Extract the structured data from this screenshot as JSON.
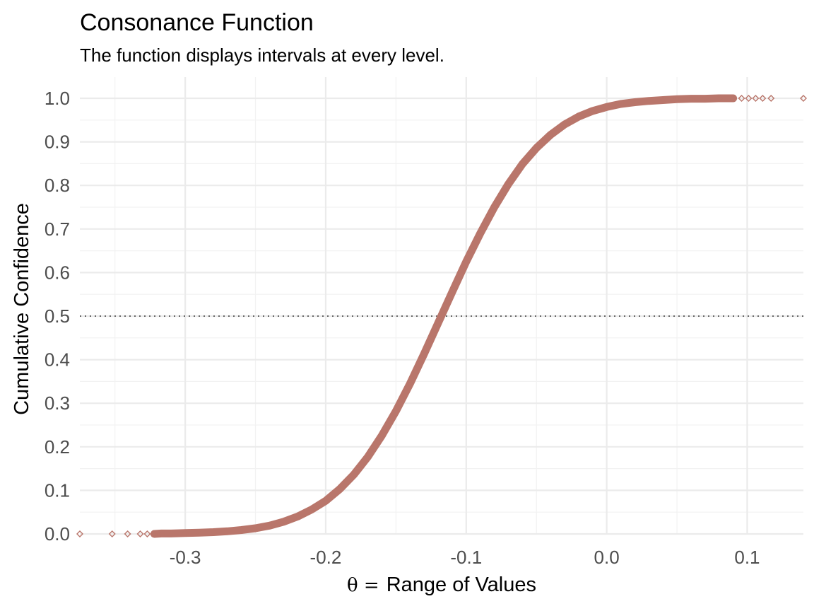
{
  "chart_data": {
    "type": "scatter",
    "title": "Consonance Function",
    "subtitle": "The function displays intervals at every level.",
    "xlabel_symbol": "θ =",
    "xlabel": "Range of Values",
    "ylabel": "Cumulative Confidence",
    "xlim": [
      -0.375,
      0.14
    ],
    "ylim": [
      0.0,
      1.0
    ],
    "x_ticks": [
      -0.3,
      -0.2,
      -0.1,
      0.0,
      0.1
    ],
    "x_tick_labels": [
      "-0.3",
      "-0.2",
      "-0.1",
      "0.0",
      "0.1"
    ],
    "y_ticks": [
      0.0,
      0.1,
      0.2,
      0.3,
      0.4,
      0.5,
      0.6,
      0.7,
      0.8,
      0.9,
      1.0
    ],
    "y_tick_labels": [
      "0.0",
      "0.1",
      "0.2",
      "0.3",
      "0.4",
      "0.5",
      "0.6",
      "0.7",
      "0.8",
      "0.9",
      "1.0"
    ],
    "reference_line": {
      "y": 0.5,
      "style": "dotted",
      "color": "#666666"
    },
    "grid": true,
    "marker": "diamond-open",
    "color": "#b9766b",
    "series": [
      {
        "points": [
          {
            "x": -0.375,
            "y": 0.0
          },
          {
            "x": -0.352,
            "y": 0.0
          },
          {
            "x": -0.341,
            "y": 0.0
          },
          {
            "x": -0.332,
            "y": 0.0
          },
          {
            "x": -0.327,
            "y": 0.0
          },
          {
            "x": -0.322,
            "y": 0.0
          },
          {
            "x": -0.317,
            "y": 0.001
          },
          {
            "x": -0.31,
            "y": 0.001
          },
          {
            "x": -0.3,
            "y": 0.002
          },
          {
            "x": -0.29,
            "y": 0.003
          },
          {
            "x": -0.28,
            "y": 0.004
          },
          {
            "x": -0.27,
            "y": 0.006
          },
          {
            "x": -0.26,
            "y": 0.009
          },
          {
            "x": -0.25,
            "y": 0.013
          },
          {
            "x": -0.24,
            "y": 0.019
          },
          {
            "x": -0.23,
            "y": 0.028
          },
          {
            "x": -0.22,
            "y": 0.04
          },
          {
            "x": -0.21,
            "y": 0.056
          },
          {
            "x": -0.2,
            "y": 0.076
          },
          {
            "x": -0.19,
            "y": 0.103
          },
          {
            "x": -0.18,
            "y": 0.136
          },
          {
            "x": -0.17,
            "y": 0.177
          },
          {
            "x": -0.16,
            "y": 0.226
          },
          {
            "x": -0.15,
            "y": 0.282
          },
          {
            "x": -0.14,
            "y": 0.345
          },
          {
            "x": -0.13,
            "y": 0.413
          },
          {
            "x": -0.12,
            "y": 0.484
          },
          {
            "x": -0.11,
            "y": 0.555
          },
          {
            "x": -0.1,
            "y": 0.625
          },
          {
            "x": -0.09,
            "y": 0.69
          },
          {
            "x": -0.08,
            "y": 0.75
          },
          {
            "x": -0.07,
            "y": 0.803
          },
          {
            "x": -0.06,
            "y": 0.849
          },
          {
            "x": -0.05,
            "y": 0.886
          },
          {
            "x": -0.04,
            "y": 0.916
          },
          {
            "x": -0.03,
            "y": 0.94
          },
          {
            "x": -0.02,
            "y": 0.958
          },
          {
            "x": -0.01,
            "y": 0.971
          },
          {
            "x": 0.0,
            "y": 0.98
          },
          {
            "x": 0.01,
            "y": 0.987
          },
          {
            "x": 0.02,
            "y": 0.991
          },
          {
            "x": 0.03,
            "y": 0.994
          },
          {
            "x": 0.04,
            "y": 0.996
          },
          {
            "x": 0.05,
            "y": 0.998
          },
          {
            "x": 0.06,
            "y": 0.999
          },
          {
            "x": 0.07,
            "y": 0.999
          },
          {
            "x": 0.08,
            "y": 1.0
          },
          {
            "x": 0.09,
            "y": 1.0
          },
          {
            "x": 0.096,
            "y": 1.0
          },
          {
            "x": 0.101,
            "y": 1.0
          },
          {
            "x": 0.106,
            "y": 1.0
          },
          {
            "x": 0.111,
            "y": 1.0
          },
          {
            "x": 0.117,
            "y": 1.0
          },
          {
            "x": 0.14,
            "y": 1.0
          }
        ]
      }
    ]
  }
}
